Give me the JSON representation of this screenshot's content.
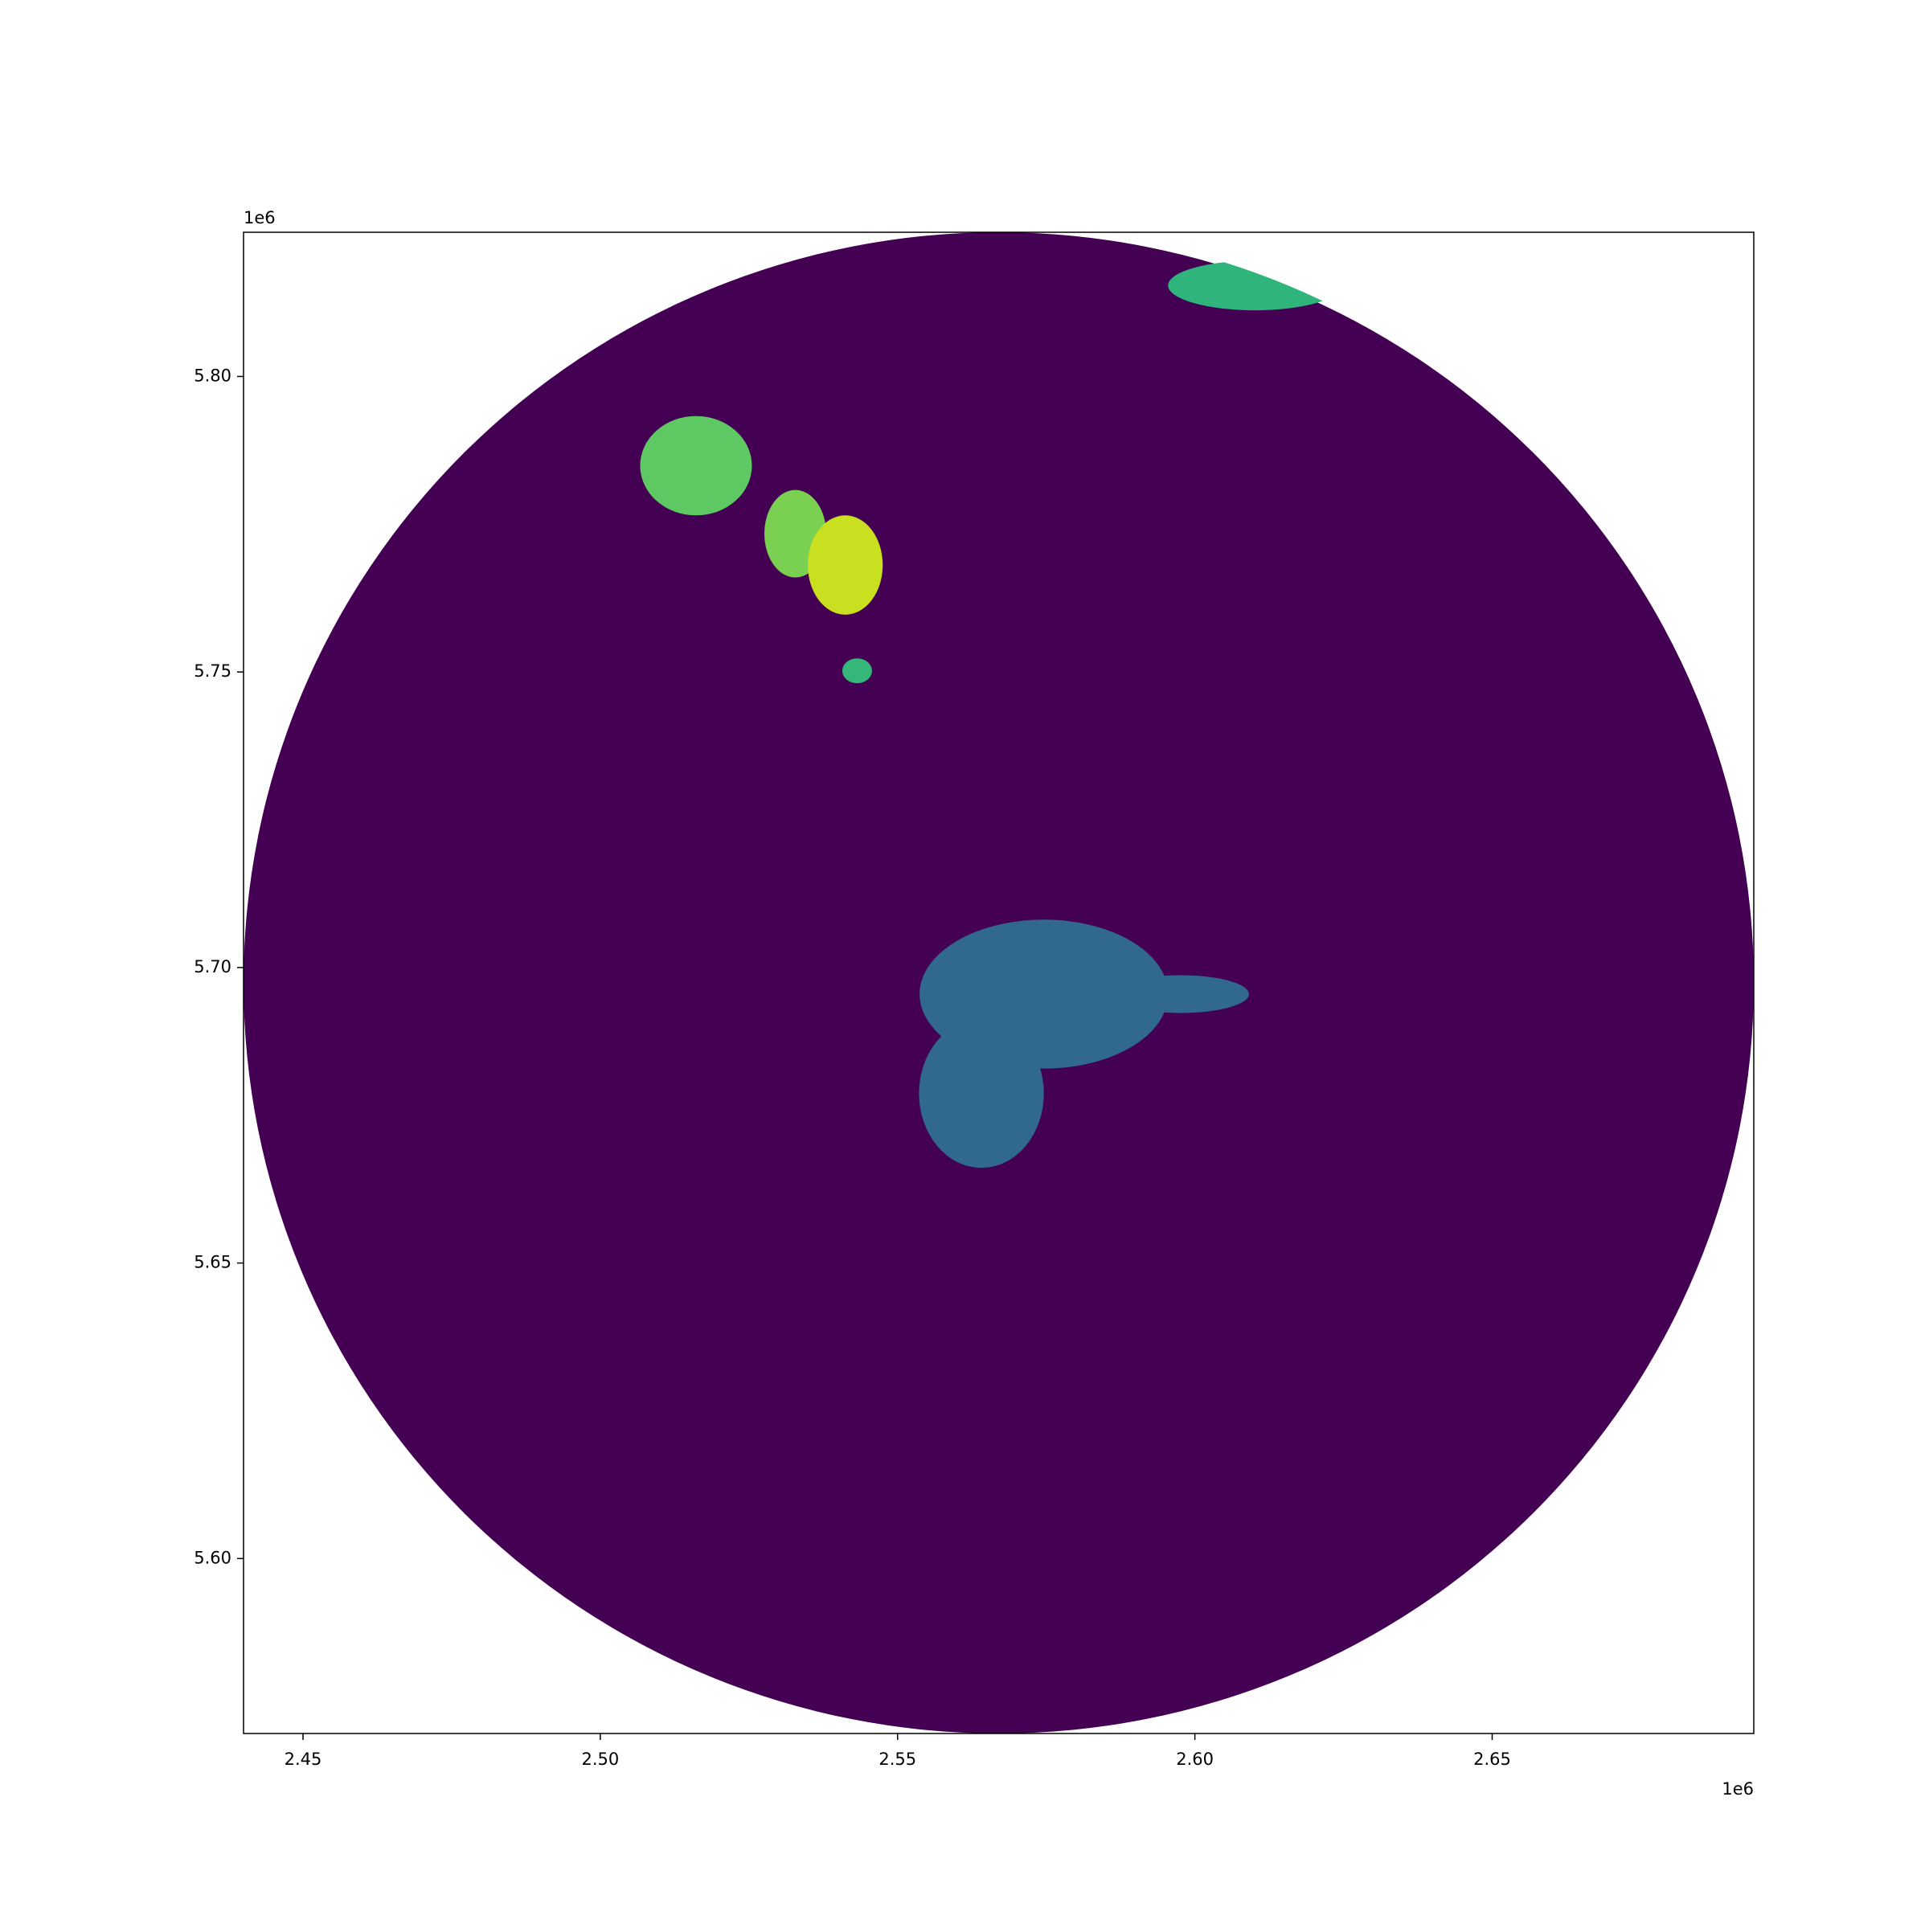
{
  "chart_data": {
    "type": "radar-image",
    "xlim": [
      2440000,
      2694000
    ],
    "ylim": [
      5570400,
      5824400
    ],
    "xticks": [
      {
        "value": 2450000,
        "label": "2.45"
      },
      {
        "value": 2500000,
        "label": "2.50"
      },
      {
        "value": 2550000,
        "label": "2.55"
      },
      {
        "value": 2600000,
        "label": "2.60"
      },
      {
        "value": 2650000,
        "label": "2.65"
      }
    ],
    "yticks": [
      {
        "value": 5600000,
        "label": "5.60"
      },
      {
        "value": 5650000,
        "label": "5.65"
      },
      {
        "value": 5700000,
        "label": "5.70"
      },
      {
        "value": 5750000,
        "label": "5.75"
      },
      {
        "value": 5800000,
        "label": "5.80"
      }
    ],
    "x_offset_label": "1e6",
    "y_offset_label": "1e6",
    "radar": {
      "x": 2567000,
      "y": 5697400,
      "radius": 127000,
      "color": "#440154"
    },
    "echoes": [
      {
        "x": 2516100,
        "y": 5784900,
        "rx": 9400,
        "ry": 8400,
        "color": "#5ec962"
      },
      {
        "x": 2532800,
        "y": 5773400,
        "rx": 5200,
        "ry": 7400,
        "color": "#7ad151"
      },
      {
        "x": 2541200,
        "y": 5768100,
        "rx": 6300,
        "ry": 8400,
        "color": "#c8e020"
      },
      {
        "x": 2543200,
        "y": 5750200,
        "rx": 2500,
        "ry": 2100,
        "color": "#35b779"
      },
      {
        "x": 2610100,
        "y": 5815400,
        "rx": 14600,
        "ry": 4200,
        "color": "#2fb47c"
      },
      {
        "x": 2574600,
        "y": 5695500,
        "rx": 20900,
        "ry": 12600,
        "color": "#31688e"
      },
      {
        "x": 2564100,
        "y": 5678700,
        "rx": 10500,
        "ry": 12600,
        "color": "#31688e"
      },
      {
        "x": 2597600,
        "y": 5695500,
        "rx": 11500,
        "ry": 3200,
        "color": "#31688e"
      }
    ]
  }
}
